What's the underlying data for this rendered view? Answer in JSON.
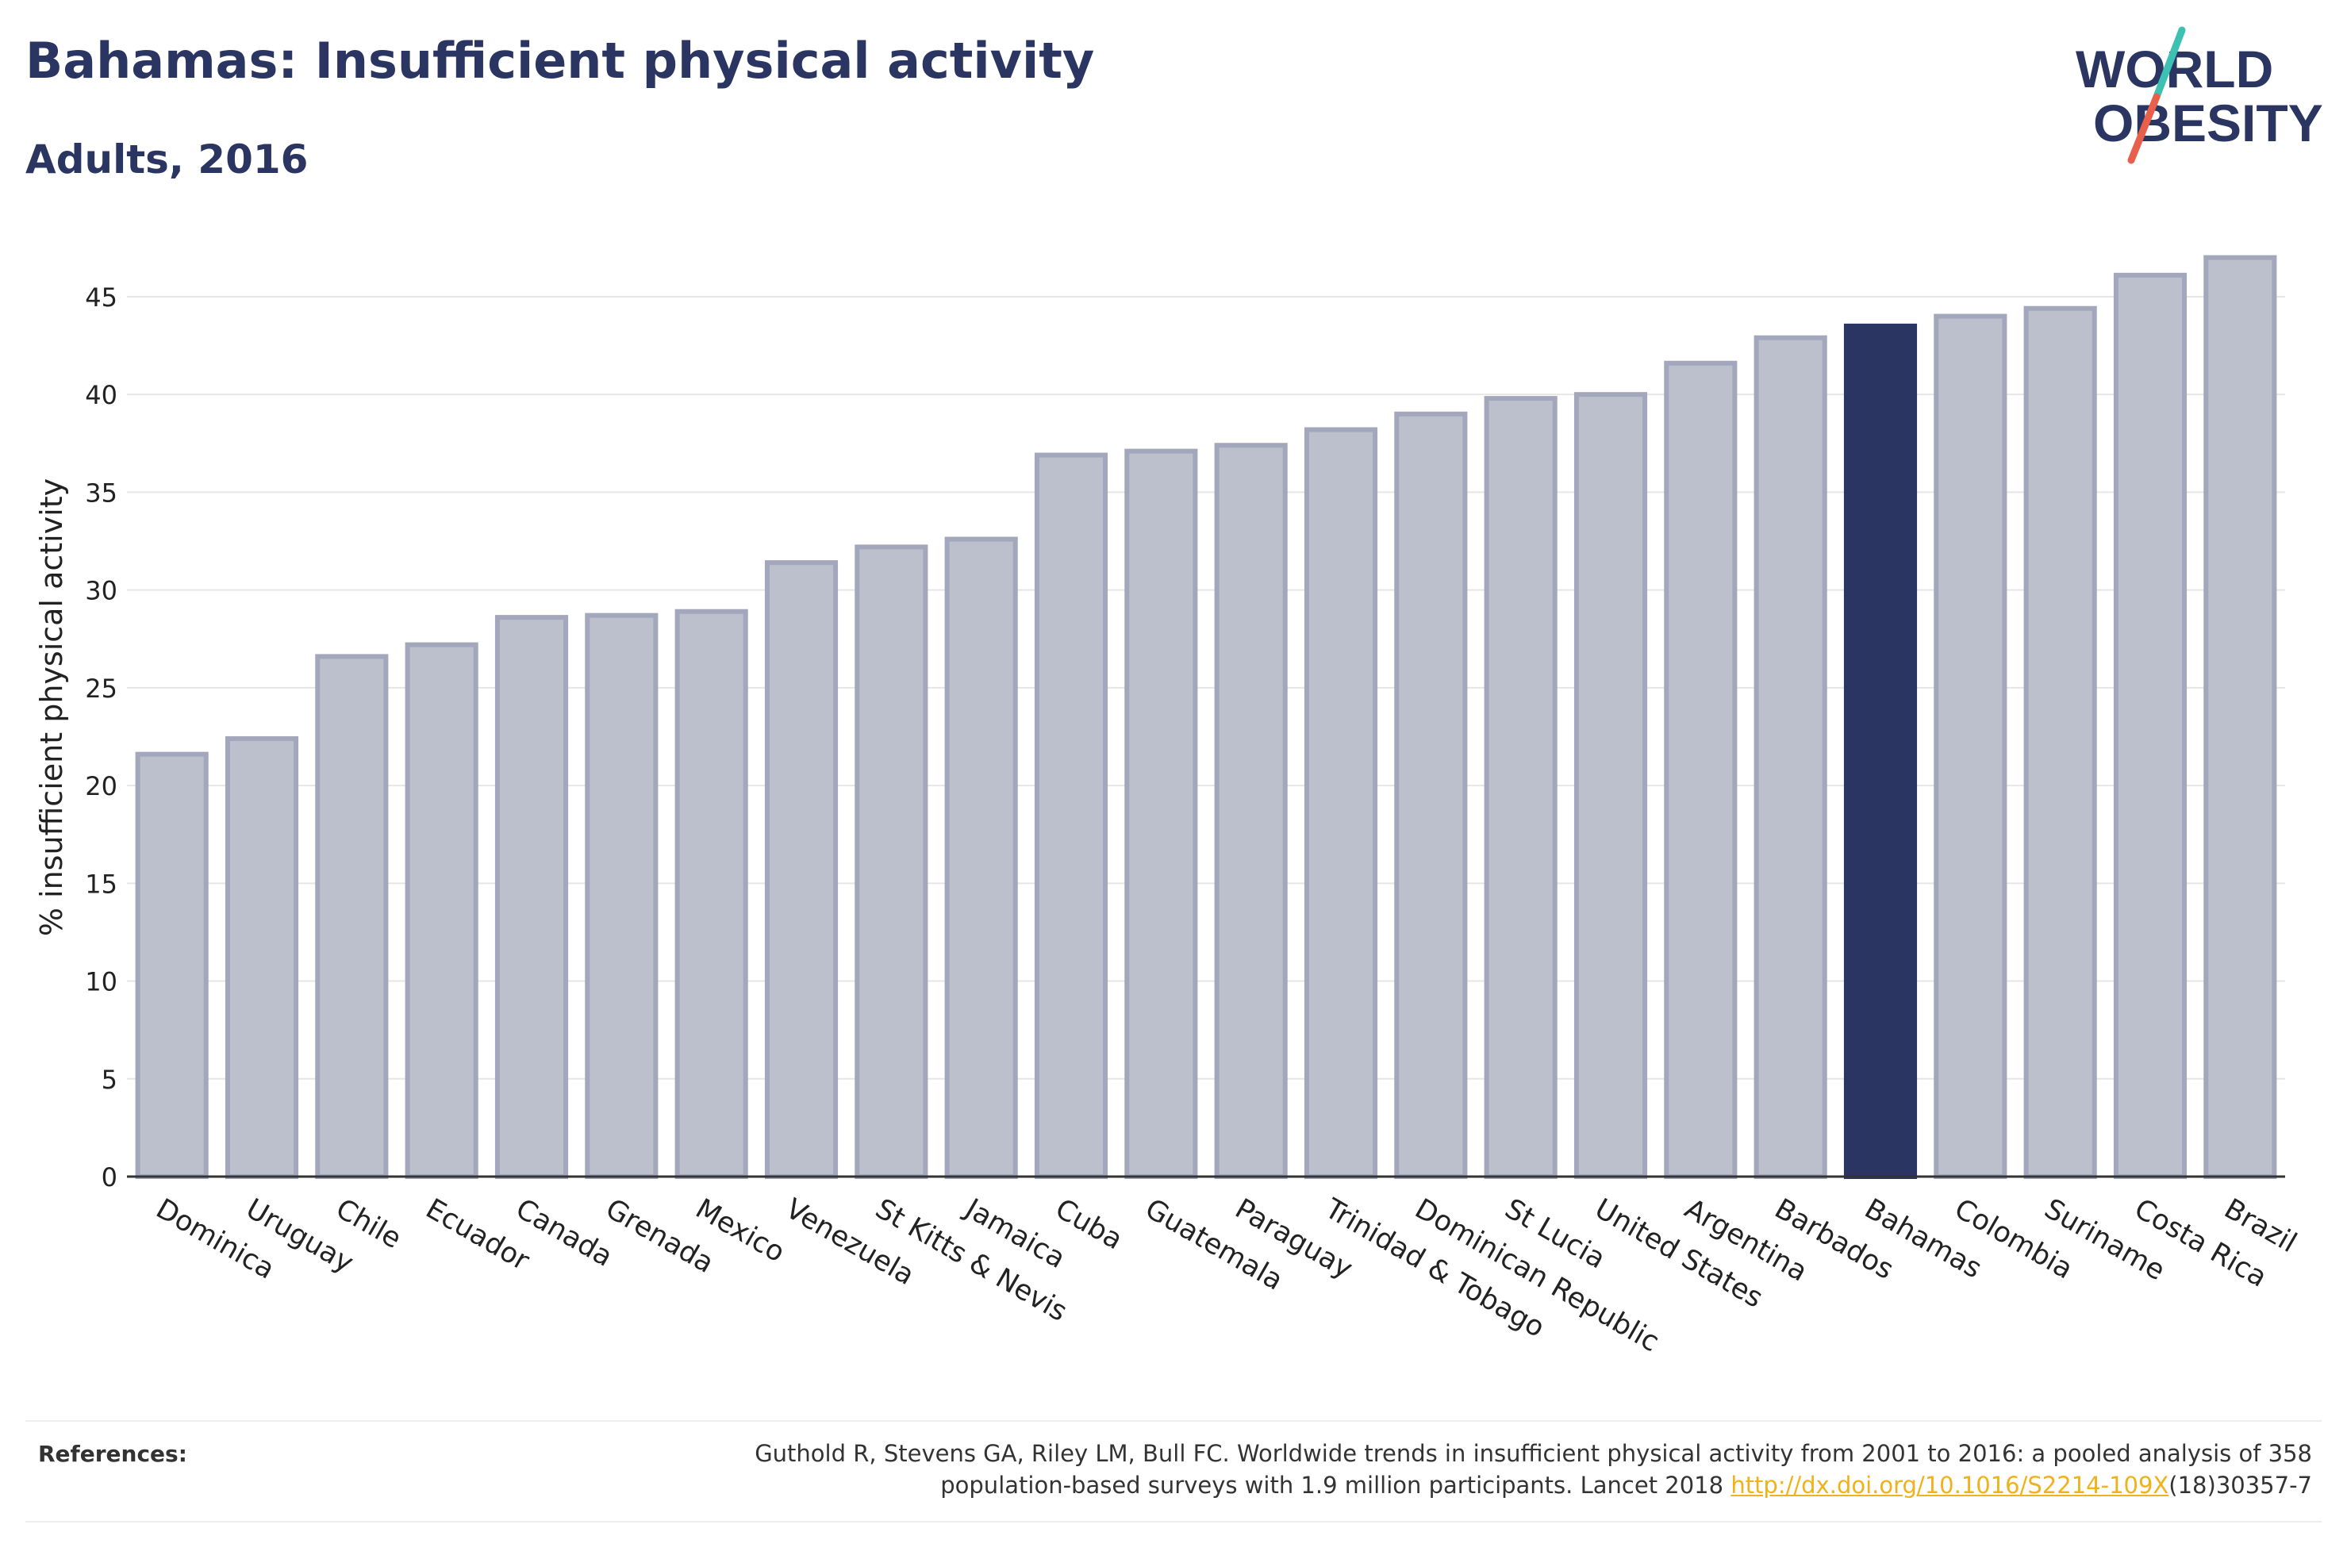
{
  "header": {
    "title": "Bahamas: Insufficient physical activity",
    "subtitle": "Adults, 2016"
  },
  "logo": {
    "line1": "WORLD",
    "line2": "OBESITY",
    "slash_colors": [
      "#3cc1b3",
      "#e8604c"
    ]
  },
  "chart_data": {
    "type": "bar",
    "ylabel": "% insufficient physical activity",
    "xlabel": "",
    "ylim": [
      0,
      48
    ],
    "yticks": [
      0,
      5,
      10,
      15,
      20,
      25,
      30,
      35,
      40,
      45
    ],
    "grid": true,
    "highlight": "Bahamas",
    "colors": {
      "default": "#bcbfcc",
      "default_edge": "#a2a7bb",
      "highlight": "#2b3562"
    },
    "categories": [
      "Dominica",
      "Uruguay",
      "Chile",
      "Ecuador",
      "Canada",
      "Grenada",
      "Mexico",
      "Venezuela",
      "St Kitts & Nevis",
      "Jamaica",
      "Cuba",
      "Guatemala",
      "Paraguay",
      "Trinidad & Tobago",
      "Dominican Republic",
      "St Lucia",
      "United States",
      "Argentina",
      "Barbados",
      "Bahamas",
      "Colombia",
      "Suriname",
      "Costa Rica",
      "Brazil"
    ],
    "values": [
      21.6,
      22.4,
      26.6,
      27.2,
      28.6,
      28.7,
      28.9,
      31.4,
      32.2,
      32.6,
      36.9,
      37.1,
      37.4,
      38.2,
      39.0,
      39.8,
      40.0,
      41.6,
      42.9,
      43.5,
      44.0,
      44.4,
      46.1,
      47.0
    ]
  },
  "references": {
    "label": "References:",
    "text_line1": "Guthold R, Stevens GA, Riley LM, Bull FC. Worldwide trends in insufficient physical activity from 2001 to 2016: a pooled analysis of 358",
    "text_line2_pre": "population-based surveys with 1.9 million participants. Lancet 2018 ",
    "link": "http://dx.doi.org/10.1016/S2214-109X",
    "text_line2_post": "(18)30357-7"
  }
}
